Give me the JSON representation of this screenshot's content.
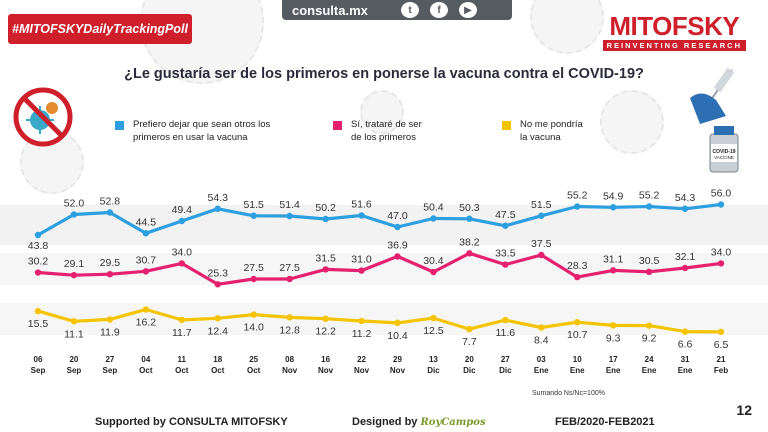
{
  "header": {
    "hashtag": "#MITOFSKYDailyTrackingPoll",
    "site": "consulta.mx",
    "brand_name": "MITOFSKY",
    "brand_tagline": "REINVENTING RESEARCH"
  },
  "vaccine_label": "COVID-19\nVACCINE",
  "chart_data": {
    "type": "line",
    "title": "¿Le gustaría ser de los primeros en ponerse la vacuna contra el COVID-19?",
    "categories": [
      {
        "day": "06",
        "month": "Sep"
      },
      {
        "day": "20",
        "month": "Sep"
      },
      {
        "day": "27",
        "month": "Sep"
      },
      {
        "day": "04",
        "month": "Oct"
      },
      {
        "day": "11",
        "month": "Oct"
      },
      {
        "day": "18",
        "month": "Oct"
      },
      {
        "day": "25",
        "month": "Oct"
      },
      {
        "day": "08",
        "month": "Nov"
      },
      {
        "day": "16",
        "month": "Nov"
      },
      {
        "day": "22",
        "month": "Nov"
      },
      {
        "day": "29",
        "month": "Nov"
      },
      {
        "day": "13",
        "month": "Dic"
      },
      {
        "day": "20",
        "month": "Dic"
      },
      {
        "day": "27",
        "month": "Dic"
      },
      {
        "day": "03",
        "month": "Ene"
      },
      {
        "day": "10",
        "month": "Ene"
      },
      {
        "day": "17",
        "month": "Ene"
      },
      {
        "day": "24",
        "month": "Ene"
      },
      {
        "day": "31",
        "month": "Ene"
      },
      {
        "day": "21",
        "month": "Feb"
      }
    ],
    "series": [
      {
        "name": "Prefiero dejar que sean otros los primeros  en usar la vacuna",
        "color": "#2d9fe0",
        "values": [
          43.8,
          52.0,
          52.8,
          44.5,
          49.4,
          54.3,
          51.5,
          51.4,
          50.2,
          51.6,
          47.0,
          50.4,
          50.3,
          47.5,
          51.5,
          55.2,
          54.9,
          55.2,
          54.3,
          56.0
        ]
      },
      {
        "name": "Sí, trataré de ser de los primeros",
        "color": "#e5216f",
        "values": [
          30.2,
          29.1,
          29.5,
          30.7,
          34.0,
          25.3,
          27.5,
          27.5,
          31.5,
          31.0,
          36.9,
          30.4,
          38.2,
          33.5,
          37.5,
          28.3,
          31.1,
          30.5,
          32.1,
          34.0
        ]
      },
      {
        "name": "No me pondría la vacuna",
        "color": "#f5c400",
        "values": [
          15.5,
          11.1,
          11.9,
          16.2,
          11.7,
          12.4,
          14.0,
          12.8,
          12.2,
          11.2,
          10.4,
          12.5,
          7.7,
          11.6,
          8.4,
          10.7,
          9.3,
          9.2,
          6.6,
          6.5
        ]
      }
    ],
    "legend_lines": [
      [
        "Prefiero dejar que sean otros los",
        "primeros  en usar la vacuna"
      ],
      [
        "Sí, trataré de ser",
        "de los primeros"
      ],
      [
        "No me pondría",
        "la vacuna"
      ]
    ],
    "ylim": [
      0,
      60
    ],
    "note": "Sumando Ns/Nc=100%"
  },
  "footer": {
    "supported": "Supported by  CONSULTA  MITOFSKY",
    "designed_label": "Designed by",
    "designer": "RoyCampos",
    "period": "FEB/2020-FEB2021",
    "page": "12"
  }
}
